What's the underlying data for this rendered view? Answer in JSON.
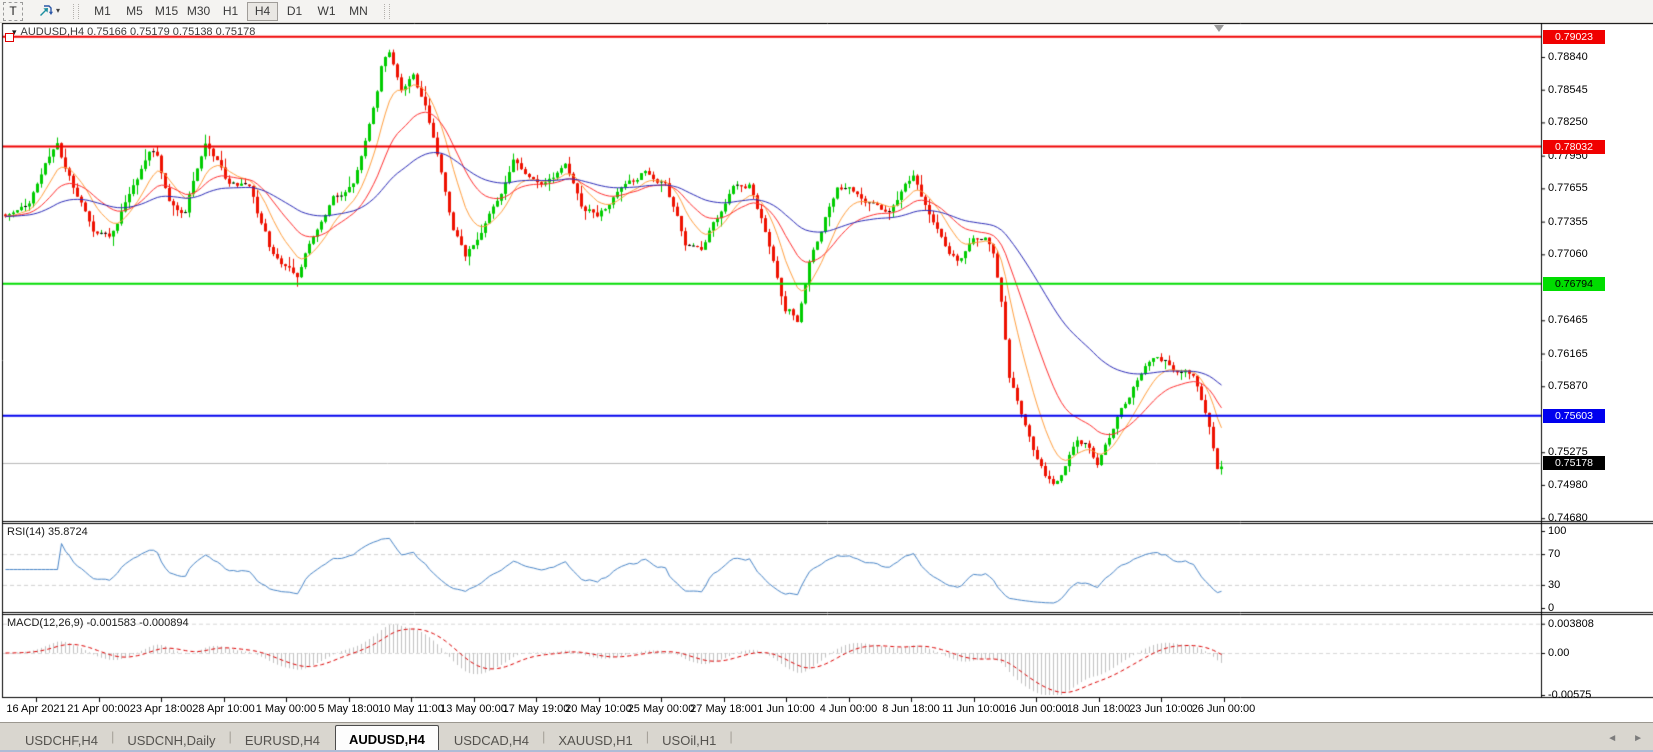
{
  "colors": {
    "up": "#00cc00",
    "down": "#ee1100",
    "doji": "#000000",
    "ma_fast": "#ffa040",
    "ma_mid": "#ff3030",
    "ma_slow": "#2a2ab8",
    "rsi_line": "#4a86c8",
    "macd_hist": "#c2c2c2",
    "macd_signal": "#dd0000",
    "grid_dash": "#cfcfcf",
    "panel_border": "#000000"
  },
  "toolbar": {
    "tool_button": "T",
    "timeframes": [
      "M1",
      "M5",
      "M15",
      "M30",
      "H1",
      "H4",
      "D1",
      "W1",
      "MN"
    ],
    "active_timeframe": "H4"
  },
  "chart": {
    "title_marker": "▾",
    "symbol_title": "AUDUSD,H4 0.75166 0.75179 0.75138 0.75178"
  },
  "price_axis": {
    "ticks": [
      "0.78840",
      "0.78545",
      "0.78250",
      "0.77950",
      "0.77655",
      "0.77355",
      "0.77060",
      "0.76465",
      "0.76165",
      "0.75870",
      "0.75275",
      "0.74980",
      "0.74680"
    ],
    "badges": [
      {
        "value": "0.79023",
        "bg": "#f00000",
        "fg": "#ffffff"
      },
      {
        "value": "0.78032",
        "bg": "#f00000",
        "fg": "#ffffff"
      },
      {
        "value": "0.76794",
        "bg": "#00dd00",
        "fg": "#000000"
      },
      {
        "value": "0.75603",
        "bg": "#0000ee",
        "fg": "#ffffff"
      },
      {
        "value": "0.75178",
        "bg": "#000000",
        "fg": "#ffffff"
      }
    ]
  },
  "hlines": [
    {
      "price": 0.79023,
      "color": "#f00000",
      "width": 2
    },
    {
      "price": 0.78032,
      "color": "#f00000",
      "width": 2
    },
    {
      "price": 0.76794,
      "color": "#00dd00",
      "width": 2
    },
    {
      "price": 0.75603,
      "color": "#0000ee",
      "width": 2
    },
    {
      "price": 0.75178,
      "color": "#b8b8b8",
      "width": 1
    }
  ],
  "rsi": {
    "label": "RSI(14)",
    "value": "35.8724",
    "axis": [
      {
        "text": "100",
        "v": 100
      },
      {
        "text": "70",
        "v": 70
      },
      {
        "text": "30",
        "v": 30
      },
      {
        "text": "0",
        "v": 0
      }
    ],
    "dashed_levels": [
      70,
      30
    ]
  },
  "macd": {
    "label": "MACD(12,26,9)",
    "value": "-0.001583 -0.000894",
    "axis": [
      {
        "text": "0.003808",
        "v": 0.003808
      },
      {
        "text": "0.00",
        "v": 0
      },
      {
        "text": "-0.00575",
        "v": -0.00575
      }
    ],
    "dashed_levels": [
      0.003808,
      0
    ]
  },
  "dates": [
    "16 Apr 2021",
    "21 Apr 00:00",
    "23 Apr 18:00",
    "28 Apr 10:00",
    "1 May 00:00",
    "5 May 18:00",
    "10 May 11:00",
    "13 May 00:00",
    "17 May 19:00",
    "20 May 10:00",
    "25 May 00:00",
    "27 May 18:00",
    "1 Jun 10:00",
    "4 Jun 00:00",
    "8 Jun 18:00",
    "11 Jun 10:00",
    "16 Jun 00:00",
    "18 Jun 18:00",
    "23 Jun 10:00",
    "26 Jun 00:00"
  ],
  "tabs": {
    "items": [
      "USDCHF,H4",
      "USDCNH,Daily",
      "EURUSD,H4",
      "AUDUSD,H4",
      "USDCAD,H4",
      "XAUUSD,H1",
      "USOil,H1"
    ],
    "active": "AUDUSD,H4"
  },
  "tab_scroll": {
    "left": "◄",
    "right": "►"
  },
  "chart_data": {
    "type": "candlestick",
    "symbol": "AUDUSD",
    "timeframe": "H4",
    "ohlc_display": {
      "open": 0.75166,
      "high": 0.75179,
      "low": 0.75138,
      "close": 0.75178
    },
    "current_price": 0.75178,
    "horizontal_levels": [
      0.79023,
      0.78032,
      0.76794,
      0.75603
    ],
    "price_axis_range": [
      0.7468,
      0.79023
    ],
    "rsi_value": 35.8724,
    "macd_values": [
      -0.001583,
      -0.000894
    ],
    "macd_axis_range": [
      -0.00575,
      0.003808
    ],
    "visible_range": [
      "16 Apr 2021",
      "26 Jun 2021"
    ],
    "price_path": [
      [
        0,
        0.7742
      ],
      [
        6,
        0.7752
      ],
      [
        10,
        0.7788
      ],
      [
        13,
        0.7806
      ],
      [
        17,
        0.7765
      ],
      [
        22,
        0.7728
      ],
      [
        26,
        0.7722
      ],
      [
        31,
        0.776
      ],
      [
        36,
        0.78
      ],
      [
        38,
        0.7795
      ],
      [
        41,
        0.7755
      ],
      [
        45,
        0.7745
      ],
      [
        50,
        0.7806
      ],
      [
        53,
        0.779
      ],
      [
        56,
        0.7772
      ],
      [
        61,
        0.7768
      ],
      [
        66,
        0.7712
      ],
      [
        70,
        0.7695
      ],
      [
        73,
        0.7688
      ],
      [
        77,
        0.7726
      ],
      [
        82,
        0.7755
      ],
      [
        87,
        0.7772
      ],
      [
        91,
        0.782
      ],
      [
        94,
        0.7875
      ],
      [
        96,
        0.7888
      ],
      [
        99,
        0.7858
      ],
      [
        102,
        0.7868
      ],
      [
        105,
        0.784
      ],
      [
        108,
        0.7795
      ],
      [
        112,
        0.7728
      ],
      [
        115,
        0.7706
      ],
      [
        119,
        0.7725
      ],
      [
        123,
        0.7755
      ],
      [
        127,
        0.7792
      ],
      [
        130,
        0.7778
      ],
      [
        135,
        0.777
      ],
      [
        140,
        0.7788
      ],
      [
        144,
        0.7748
      ],
      [
        148,
        0.7742
      ],
      [
        152,
        0.7756
      ],
      [
        157,
        0.7772
      ],
      [
        160,
        0.778
      ],
      [
        165,
        0.777
      ],
      [
        170,
        0.7718
      ],
      [
        174,
        0.7712
      ],
      [
        178,
        0.774
      ],
      [
        182,
        0.7768
      ],
      [
        186,
        0.7766
      ],
      [
        189,
        0.774
      ],
      [
        192,
        0.77
      ],
      [
        195,
        0.7655
      ],
      [
        198,
        0.7648
      ],
      [
        201,
        0.77
      ],
      [
        204,
        0.7725
      ],
      [
        208,
        0.777
      ],
      [
        212,
        0.7762
      ],
      [
        216,
        0.7752
      ],
      [
        221,
        0.7744
      ],
      [
        225,
        0.777
      ],
      [
        227,
        0.7776
      ],
      [
        231,
        0.774
      ],
      [
        235,
        0.7715
      ],
      [
        238,
        0.77
      ],
      [
        242,
        0.772
      ],
      [
        245,
        0.7722
      ],
      [
        247,
        0.771
      ],
      [
        249,
        0.766
      ],
      [
        251,
        0.7592
      ],
      [
        254,
        0.7565
      ],
      [
        257,
        0.7532
      ],
      [
        260,
        0.7505
      ],
      [
        262,
        0.75
      ],
      [
        265,
        0.7515
      ],
      [
        268,
        0.7538
      ],
      [
        271,
        0.753
      ],
      [
        273,
        0.7518
      ],
      [
        276,
        0.754
      ],
      [
        279,
        0.7565
      ],
      [
        282,
        0.7588
      ],
      [
        285,
        0.7602
      ],
      [
        288,
        0.7612
      ],
      [
        291,
        0.7606
      ],
      [
        294,
        0.76
      ],
      [
        297,
        0.7595
      ],
      [
        299,
        0.7572
      ],
      [
        301,
        0.7548
      ],
      [
        303,
        0.7515
      ],
      [
        304,
        0.7518
      ]
    ]
  }
}
